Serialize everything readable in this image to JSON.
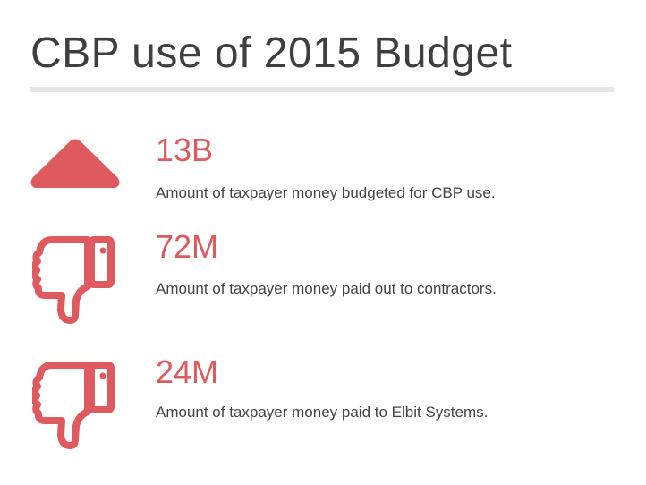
{
  "title": "CBP use of 2015 Budget",
  "accent_color": "#de5a5e",
  "items": [
    {
      "icon": "triangle-up-icon",
      "value": "13B",
      "description": "Amount of taxpayer money budgeted for CBP use."
    },
    {
      "icon": "thumbs-down-icon",
      "value": "72M",
      "description": "Amount of taxpayer money paid out to contractors."
    },
    {
      "icon": "thumbs-down-icon",
      "value": "24M",
      "description": "Amount of taxpayer money paid to Elbit Systems."
    }
  ]
}
